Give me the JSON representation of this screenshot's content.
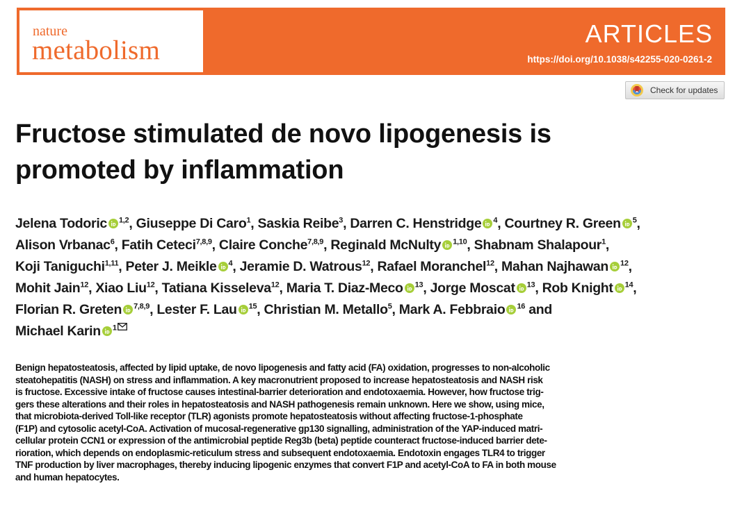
{
  "journal": {
    "name_line1": "nature",
    "name_line2": "metabolism",
    "section": "ARTICLES",
    "doi": "https://doi.org/10.1038/s42255-020-0261-2",
    "brand_color": "#ef6a2c"
  },
  "check_updates": {
    "label": "Check for updates",
    "icon": "crossmark-icon"
  },
  "article": {
    "title_line1": "Fructose stimulated de novo lipogenesis is",
    "title_line2": "promoted by inflammation"
  },
  "authors": [
    {
      "name": "Jelena Todoric",
      "orcid": true,
      "aff": "1,2"
    },
    {
      "name": "Giuseppe Di Caro",
      "orcid": false,
      "aff": "1"
    },
    {
      "name": "Saskia Reibe",
      "orcid": false,
      "aff": "3"
    },
    {
      "name": "Darren C. Henstridge",
      "orcid": true,
      "aff": "4"
    },
    {
      "name": "Courtney R. Green",
      "orcid": true,
      "aff": "5"
    },
    {
      "name": "Alison Vrbanac",
      "orcid": false,
      "aff": "6"
    },
    {
      "name": "Fatih Ceteci",
      "orcid": false,
      "aff": "7,8,9"
    },
    {
      "name": "Claire Conche",
      "orcid": false,
      "aff": "7,8,9"
    },
    {
      "name": "Reginald McNulty",
      "orcid": true,
      "aff": "1,10"
    },
    {
      "name": "Shabnam Shalapour",
      "orcid": false,
      "aff": "1"
    },
    {
      "name": "Koji Taniguchi",
      "orcid": false,
      "aff": "1,11"
    },
    {
      "name": "Peter J. Meikle",
      "orcid": true,
      "aff": "4"
    },
    {
      "name": "Jeramie D. Watrous",
      "orcid": false,
      "aff": "12"
    },
    {
      "name": "Rafael Moranchel",
      "orcid": false,
      "aff": "12"
    },
    {
      "name": "Mahan Najhawan",
      "orcid": true,
      "aff": "12"
    },
    {
      "name": "Mohit Jain",
      "orcid": false,
      "aff": "12"
    },
    {
      "name": "Xiao Liu",
      "orcid": false,
      "aff": "12"
    },
    {
      "name": "Tatiana Kisseleva",
      "orcid": false,
      "aff": "12"
    },
    {
      "name": "Maria T. Diaz-Meco",
      "orcid": true,
      "aff": "13"
    },
    {
      "name": "Jorge Moscat",
      "orcid": true,
      "aff": "13"
    },
    {
      "name": "Rob Knight",
      "orcid": true,
      "aff": "14"
    },
    {
      "name": "Florian R. Greten",
      "orcid": true,
      "aff": "7,8,9"
    },
    {
      "name": "Lester F. Lau",
      "orcid": true,
      "aff": "15"
    },
    {
      "name": "Christian M. Metallo",
      "orcid": false,
      "aff": "5"
    },
    {
      "name": "Mark A. Febbraio",
      "orcid": true,
      "aff": "16"
    },
    {
      "name": "Michael Karin",
      "orcid": true,
      "aff": "1"
    }
  ],
  "author_conjunction": "and",
  "abstract_lines": [
    "Benign hepatosteatosis, affected by lipid uptake, de novo lipogenesis and fatty acid (FA) oxidation, progresses to non-alcoholic",
    "steatohepatitis (NASH) on stress and inflammation. A key macronutrient proposed to increase hepatosteatosis and NASH risk",
    "is fructose. Excessive intake of fructose causes intestinal-barrier deterioration and endotoxaemia. However, how fructose trig-",
    "gers these alterations and their roles in hepatosteatosis and NASH pathogenesis remain unknown. Here we show, using mice,",
    "that microbiota-derived Toll-like receptor (TLR) agonists promote hepatosteatosis without affecting fructose-1-phosphate",
    "(F1P) and cytosolic acetyl-CoA. Activation of mucosal-regenerative gp130 signalling, administration of the YAP-induced matri-",
    "cellular protein CCN1 or expression of the antimicrobial peptide Reg3b (beta) peptide counteract fructose-induced barrier dete-",
    "rioration, which depends on endoplasmic-reticulum stress and subsequent endotoxaemia. Endotoxin engages TLR4 to trigger",
    "TNF production by liver macrophages, thereby inducing lipogenic enzymes that convert F1P and acetyl-CoA to FA in both mouse",
    "and human hepatocytes."
  ]
}
